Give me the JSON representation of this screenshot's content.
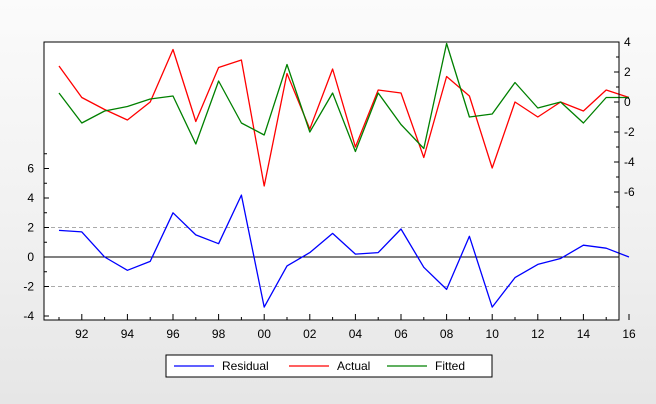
{
  "chart_data": {
    "type": "line",
    "x": [
      "1991",
      "1992",
      "1993",
      "1994",
      "1995",
      "1996",
      "1997",
      "1998",
      "1999",
      "2000",
      "2001",
      "2002",
      "2003",
      "2004",
      "2005",
      "2006",
      "2007",
      "2008",
      "2009",
      "2010",
      "2011",
      "2012",
      "2013",
      "2014",
      "2015",
      "2016"
    ],
    "x_tick_labels": [
      "92",
      "94",
      "96",
      "98",
      "00",
      "02",
      "04",
      "06",
      "08",
      "10",
      "12",
      "14",
      "16"
    ],
    "left_axis": {
      "ticks": [
        "6",
        "4",
        "2",
        "0",
        "-2",
        "-4"
      ],
      "ylim": [
        -4,
        6.6
      ]
    },
    "right_axis": {
      "ticks": [
        "4",
        "2",
        "0",
        "-2",
        "-4",
        "-6"
      ],
      "ylim": [
        -8,
        4.2
      ]
    },
    "series": [
      {
        "name": "Residual",
        "color": "#0000ff",
        "axis": "left",
        "values": [
          1.8,
          1.7,
          0.0,
          -0.9,
          -0.3,
          3.0,
          1.5,
          0.9,
          4.2,
          -3.4,
          -0.6,
          0.3,
          1.6,
          0.2,
          0.3,
          1.9,
          -0.7,
          -2.2,
          1.4,
          -3.4,
          -1.4,
          -0.5,
          -0.1,
          0.8,
          0.6,
          0.0
        ]
      },
      {
        "name": "Actual",
        "color": "#ff0000",
        "axis": "right",
        "values": [
          2.4,
          0.3,
          -0.5,
          -1.2,
          0.0,
          3.5,
          -1.3,
          2.3,
          2.8,
          -5.6,
          1.9,
          -1.8,
          2.2,
          -3.0,
          0.8,
          0.6,
          -3.7,
          1.7,
          0.4,
          -4.4,
          0.0,
          -1.0,
          0.0,
          -0.6,
          0.8,
          0.3
        ]
      },
      {
        "name": "Fitted",
        "color": "#008000",
        "axis": "right",
        "values": [
          0.6,
          -1.4,
          -0.6,
          -0.3,
          0.2,
          0.4,
          -2.8,
          1.4,
          -1.4,
          -2.2,
          2.5,
          -2.0,
          0.6,
          -3.3,
          0.6,
          -1.5,
          -3.1,
          3.9,
          -1.0,
          -0.8,
          1.3,
          -0.4,
          0.0,
          -1.4,
          0.3,
          0.3
        ]
      }
    ],
    "reference_lines": {
      "solid": [
        0
      ],
      "dashed": [
        2,
        -2
      ]
    },
    "legend": {
      "placement": "bottom-center",
      "entries": [
        "Residual",
        "Actual",
        "Fitted"
      ]
    },
    "grid": false
  }
}
